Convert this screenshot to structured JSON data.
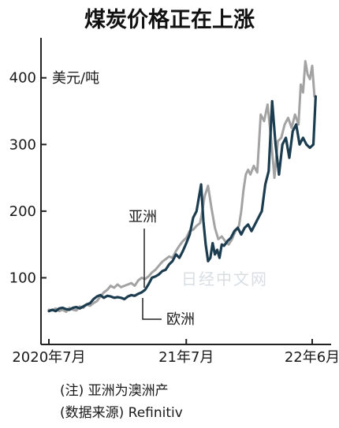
{
  "chart_data": {
    "type": "line",
    "title": "煤炭价格正在上涨",
    "ylabel": "美元/吨",
    "ylim": [
      0,
      460
    ],
    "yticks": [
      100,
      200,
      300,
      400
    ],
    "xlim": [
      0,
      24
    ],
    "xticks": [
      {
        "label": "2020年7月",
        "x": 0
      },
      {
        "label": "21年7月",
        "x": 12
      },
      {
        "label": "22年6月",
        "x": 23
      }
    ],
    "grid": false,
    "notes": [
      "(注) 亚洲为澳洲产",
      "(数据来源) Refinitiv"
    ],
    "watermark": "日经中文网",
    "series": [
      {
        "name": "亚洲",
        "color": "#a3a3a3",
        "x": [
          0,
          0.3,
          0.6,
          0.9,
          1.2,
          1.5,
          1.8,
          2.1,
          2.4,
          2.7,
          3.0,
          3.3,
          3.6,
          3.9,
          4.2,
          4.5,
          4.8,
          5.1,
          5.4,
          5.7,
          6.0,
          6.3,
          6.6,
          6.9,
          7.2,
          7.5,
          7.8,
          8.1,
          8.4,
          8.7,
          9.0,
          9.3,
          9.6,
          9.9,
          10.2,
          10.5,
          10.8,
          11.1,
          11.4,
          11.7,
          12.0,
          12.3,
          12.6,
          12.9,
          13.2,
          13.4,
          13.6,
          13.9,
          14.2,
          14.5,
          14.8,
          15.1,
          15.4,
          15.7,
          16.0,
          16.3,
          16.6,
          16.8,
          17.0,
          17.2,
          17.4,
          17.6,
          17.9,
          18.2,
          18.5,
          18.8,
          19.1,
          19.4,
          19.7,
          20.0,
          20.3,
          20.6,
          20.9,
          21.2,
          21.5,
          21.8,
          22.0,
          22.2,
          22.4,
          22.6,
          22.8,
          23.0,
          23.2
        ],
        "values": [
          52,
          51,
          54,
          50,
          52,
          49,
          55,
          52,
          51,
          57,
          55,
          60,
          58,
          62,
          65,
          72,
          78,
          82,
          88,
          85,
          90,
          86,
          88,
          90,
          92,
          88,
          96,
          100,
          98,
          102,
          108,
          112,
          118,
          124,
          128,
          132,
          130,
          140,
          148,
          155,
          160,
          170,
          172,
          178,
          182,
          200,
          222,
          238,
          205,
          175,
          158,
          162,
          155,
          150,
          158,
          170,
          178,
          200,
          232,
          255,
          262,
          255,
          268,
          258,
          345,
          335,
          360,
          310,
          250,
          305,
          310,
          330,
          340,
          325,
          345,
          330,
          390,
          378,
          425,
          405,
          398,
          418,
          372
        ]
      },
      {
        "name": "欧洲",
        "color": "#1c3d4f",
        "x": [
          0,
          0.3,
          0.6,
          0.9,
          1.2,
          1.5,
          1.8,
          2.1,
          2.4,
          2.7,
          3.0,
          3.3,
          3.6,
          3.9,
          4.2,
          4.5,
          4.8,
          5.1,
          5.4,
          5.7,
          6.0,
          6.3,
          6.6,
          6.9,
          7.2,
          7.5,
          7.8,
          8.1,
          8.4,
          8.7,
          9.0,
          9.3,
          9.6,
          9.9,
          10.2,
          10.5,
          10.8,
          11.1,
          11.4,
          11.7,
          12.0,
          12.3,
          12.6,
          12.9,
          13.1,
          13.3,
          13.5,
          13.7,
          13.9,
          14.1,
          14.3,
          14.5,
          14.7,
          14.9,
          15.1,
          15.3,
          15.6,
          15.9,
          16.2,
          16.5,
          16.8,
          17.1,
          17.4,
          17.7,
          18.0,
          18.3,
          18.6,
          18.9,
          19.2,
          19.5,
          19.8,
          20.1,
          20.4,
          20.7,
          21.0,
          21.3,
          21.6,
          21.9,
          22.2,
          22.5,
          22.8,
          23.1,
          23.3
        ],
        "values": [
          50,
          52,
          50,
          54,
          55,
          53,
          52,
          55,
          56,
          54,
          57,
          60,
          62,
          68,
          72,
          74,
          70,
          73,
          72,
          70,
          71,
          70,
          68,
          72,
          74,
          73,
          76,
          78,
          82,
          90,
          100,
          102,
          105,
          110,
          112,
          120,
          125,
          135,
          130,
          140,
          152,
          165,
          190,
          200,
          220,
          240,
          185,
          150,
          125,
          130,
          152,
          135,
          142,
          130,
          150,
          148,
          155,
          160,
          170,
          175,
          165,
          175,
          180,
          170,
          180,
          190,
          200,
          240,
          260,
          365,
          300,
          255,
          300,
          310,
          280,
          320,
          330,
          300,
          310,
          300,
          295,
          300,
          372
        ]
      }
    ]
  }
}
